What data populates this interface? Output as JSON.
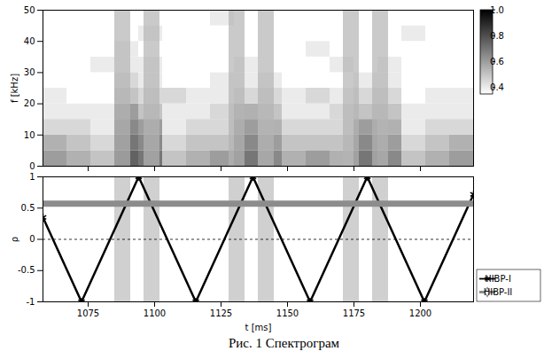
{
  "chart_data": [
    {
      "type": "heatmap",
      "y_label": "f [kHz]",
      "xlim": [
        1058,
        1220
      ],
      "xticks": [
        1075,
        1100,
        1125,
        1150,
        1175,
        1200
      ],
      "ylim": [
        0,
        50
      ],
      "yticks": [
        0,
        10,
        20,
        30,
        40,
        50
      ],
      "tick_labels": "y",
      "x_edges": [
        1058,
        1067,
        1076,
        1085,
        1094,
        1103,
        1112,
        1121,
        1130,
        1139,
        1148,
        1157,
        1166,
        1175,
        1184,
        1193,
        1202,
        1211,
        1220
      ],
      "y_edges": [
        0,
        5,
        10,
        15,
        20,
        25,
        30,
        35,
        40,
        45,
        50
      ],
      "z": [
        [
          0.6,
          0.55,
          0.5,
          0.75,
          0.7,
          0.5,
          0.55,
          0.6,
          0.7,
          0.65,
          0.55,
          0.6,
          0.55,
          0.7,
          0.65,
          0.5,
          0.55,
          0.6
        ],
        [
          0.55,
          0.5,
          0.45,
          0.7,
          0.65,
          0.45,
          0.5,
          0.5,
          0.65,
          0.6,
          0.5,
          0.5,
          0.5,
          0.65,
          0.6,
          0.45,
          0.5,
          0.55
        ],
        [
          0.45,
          0.45,
          0.4,
          0.65,
          0.6,
          0.4,
          0.45,
          0.45,
          0.6,
          0.55,
          0.45,
          0.45,
          0.45,
          0.6,
          0.55,
          0.4,
          0.45,
          0.45
        ],
        [
          0.4,
          0.4,
          0.4,
          0.6,
          0.5,
          0.4,
          0.4,
          0.45,
          0.55,
          0.5,
          0.4,
          0.4,
          0.45,
          0.5,
          0.5,
          0.4,
          0.4,
          0.4
        ],
        [
          0.4,
          0.35,
          0.35,
          0.5,
          0.45,
          0.45,
          0.4,
          0.4,
          0.45,
          0.45,
          0.4,
          0.45,
          0.4,
          0.45,
          0.45,
          0.35,
          0.4,
          0.4
        ],
        [
          0.35,
          0.35,
          0.35,
          0.45,
          0.4,
          0.35,
          0.35,
          0.4,
          0.4,
          0.4,
          0.35,
          0.35,
          0.35,
          0.4,
          0.4,
          0.35,
          0.35,
          0.35
        ],
        [
          0.35,
          0.35,
          0.4,
          0.4,
          0.4,
          0.35,
          0.35,
          0.35,
          0.4,
          0.35,
          0.35,
          0.35,
          0.4,
          0.35,
          0.4,
          0.35,
          0.35,
          0.35
        ],
        [
          0.35,
          0.35,
          0.35,
          0.4,
          0.35,
          0.35,
          0.35,
          0.35,
          0.35,
          0.35,
          0.35,
          0.4,
          0.35,
          0.35,
          0.35,
          0.35,
          0.35,
          0.35
        ],
        [
          0.35,
          0.35,
          0.35,
          0.35,
          0.4,
          0.35,
          0.35,
          0.35,
          0.35,
          0.35,
          0.35,
          0.35,
          0.35,
          0.35,
          0.35,
          0.4,
          0.35,
          0.35
        ],
        [
          0.35,
          0.35,
          0.35,
          0.35,
          0.35,
          0.35,
          0.35,
          0.4,
          0.35,
          0.35,
          0.35,
          0.35,
          0.35,
          0.35,
          0.35,
          0.35,
          0.35,
          0.35
        ]
      ],
      "colorbar": {
        "range": [
          0.35,
          1
        ],
        "ticks": [
          0.4,
          0.6,
          0.8,
          {
            "value": 1,
            "label": "1.0"
          }
        ]
      },
      "shaded_intervals": [
        [
          1085,
          1091
        ],
        [
          1096,
          1102
        ],
        [
          1128,
          1134
        ],
        [
          1139,
          1145
        ],
        [
          1171,
          1177
        ],
        [
          1182,
          1188
        ]
      ]
    },
    {
      "type": "line",
      "x_label": "t [ms]",
      "y_label": "ρ",
      "xlim": [
        1058,
        1220
      ],
      "xticks": [
        1075,
        1100,
        1125,
        1150,
        1175,
        1200
      ],
      "ylim": [
        -1,
        1
      ],
      "yticks": [
        -1,
        -0.5,
        0,
        0.5,
        1
      ],
      "legend": "right",
      "hlines": [
        {
          "value": 0,
          "line_style": "dashed"
        }
      ],
      "shaded_intervals": [
        [
          1085,
          1091
        ],
        [
          1096,
          1102
        ],
        [
          1128,
          1134
        ],
        [
          1139,
          1145
        ],
        [
          1171,
          1177
        ],
        [
          1182,
          1188
        ]
      ],
      "series": [
        {
          "name": "HIBP-I",
          "color": "#000000",
          "marker": "asterisk",
          "x": [
            1058,
            1072.5,
            1094,
            1115.5,
            1137,
            1158.5,
            1180,
            1201.5,
            1220
          ],
          "values": [
            0.35,
            -1,
            1,
            -1,
            1,
            -1,
            1,
            -1,
            0.72
          ]
        },
        {
          "name": "HIBP-II",
          "color": "#8c8c8c",
          "marker": "diamond",
          "x": [
            1058,
            1220
          ],
          "values": [
            0.57,
            0.57
          ]
        }
      ],
      "caption": "Рис. 1 Спектрограм"
    }
  ]
}
